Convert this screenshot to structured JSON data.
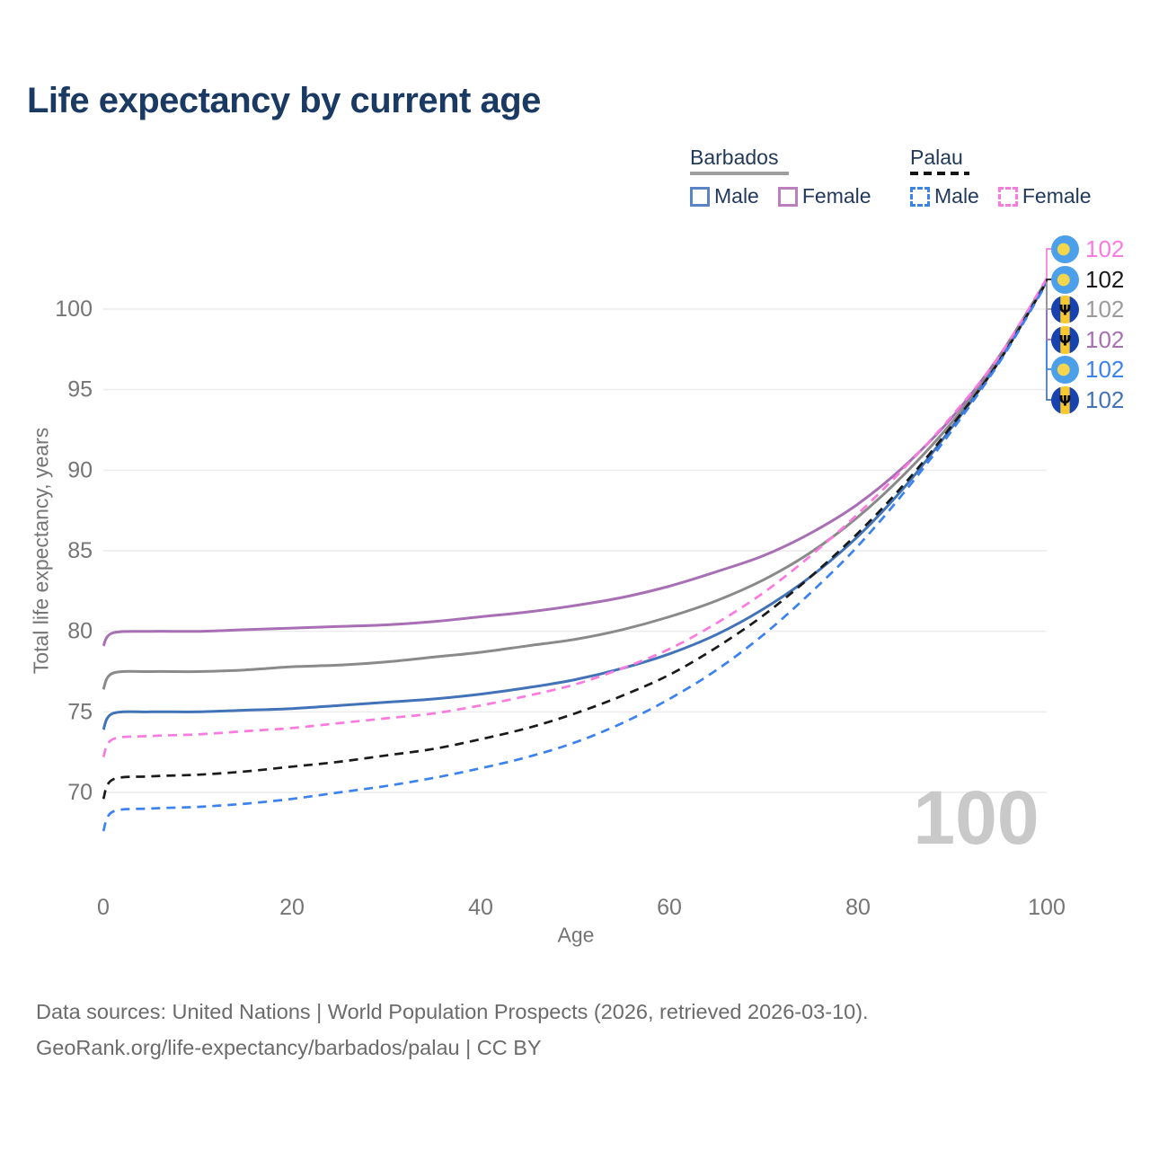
{
  "title": "Life expectancy by current age",
  "legend": {
    "barbados": {
      "title": "Barbados",
      "male": "Male",
      "female": "Female"
    },
    "palau": {
      "title": "Palau",
      "male": "Male",
      "female": "Female"
    }
  },
  "axes": {
    "x_title": "Age",
    "y_title": "Total life expectancy, years",
    "x_ticks": [
      0,
      20,
      40,
      60,
      80,
      100
    ],
    "y_ticks": [
      70,
      75,
      80,
      85,
      90,
      95,
      100
    ]
  },
  "watermark": "100",
  "footer": {
    "line1": "Data sources: United Nations | World Population Prospects (2026, retrieved 2026-03-10).",
    "line2": "GeoRank.org/life-expectancy/barbados/palau | CC BY"
  },
  "colors": {
    "title_text": "#1b3a63",
    "legend_text": "#22395c",
    "axis_text": "#757575",
    "gridline": "#ececec",
    "watermark": "#c9c9c9",
    "footer_text": "#6b6b6b",
    "barbados_male": "#4273b8",
    "barbados_female": "#a86fb5",
    "barbados_total": "#8a8a8a",
    "palau_male": "#3b82ef",
    "palau_female": "#fb7ae0",
    "palau_total": "#1a1a1a"
  },
  "chart_data": {
    "type": "line",
    "title": "Life expectancy by current age",
    "xlabel": "Age",
    "ylabel": "Total life expectancy, years",
    "xlim": [
      0,
      100
    ],
    "ylim": [
      67,
      102
    ],
    "grid": "horizontal",
    "ages": [
      0,
      1,
      5,
      10,
      15,
      20,
      25,
      30,
      35,
      40,
      45,
      50,
      55,
      60,
      65,
      70,
      75,
      80,
      85,
      90,
      95,
      100
    ],
    "series": [
      {
        "id": "barbados-female",
        "country": "Barbados",
        "sex": "Female",
        "style": "solid",
        "color": "#a86fb5",
        "values": [
          79.1,
          79.9,
          80.0,
          80.0,
          80.1,
          80.2,
          80.3,
          80.4,
          80.6,
          80.9,
          81.2,
          81.6,
          82.1,
          82.8,
          83.7,
          84.7,
          86.1,
          87.9,
          90.3,
          93.3,
          97.1,
          101.8
        ]
      },
      {
        "id": "barbados-total",
        "country": "Barbados",
        "sex": "All",
        "style": "solid",
        "color": "#8a8a8a",
        "values": [
          76.4,
          77.4,
          77.5,
          77.5,
          77.6,
          77.8,
          77.9,
          78.1,
          78.4,
          78.7,
          79.1,
          79.5,
          80.1,
          80.9,
          81.9,
          83.2,
          84.9,
          87.1,
          89.8,
          93.0,
          96.9,
          101.8
        ]
      },
      {
        "id": "barbados-male",
        "country": "Barbados",
        "sex": "Male",
        "style": "solid",
        "color": "#4273b8",
        "values": [
          73.9,
          74.9,
          75.0,
          75.0,
          75.1,
          75.2,
          75.4,
          75.6,
          75.8,
          76.1,
          76.5,
          77.0,
          77.7,
          78.6,
          79.8,
          81.4,
          83.4,
          85.9,
          89.0,
          92.7,
          96.8,
          101.7
        ]
      },
      {
        "id": "palau-female",
        "country": "Palau",
        "sex": "Female",
        "style": "dashed",
        "color": "#fb7ae0",
        "values": [
          72.2,
          73.3,
          73.5,
          73.6,
          73.8,
          74.0,
          74.3,
          74.6,
          74.9,
          75.4,
          76.0,
          76.7,
          77.7,
          78.9,
          80.5,
          82.4,
          84.7,
          87.3,
          90.2,
          93.4,
          97.1,
          101.9
        ]
      },
      {
        "id": "palau-total",
        "country": "Palau",
        "sex": "All",
        "style": "dashed",
        "color": "#1a1a1a",
        "values": [
          69.6,
          70.8,
          71.0,
          71.1,
          71.3,
          71.6,
          71.9,
          72.3,
          72.7,
          73.3,
          74.0,
          74.9,
          76.0,
          77.3,
          79.0,
          81.0,
          83.4,
          86.1,
          89.2,
          92.8,
          96.8,
          101.7
        ]
      },
      {
        "id": "palau-male",
        "country": "Palau",
        "sex": "Male",
        "style": "dashed",
        "color": "#3b82ef",
        "values": [
          67.6,
          68.8,
          69.0,
          69.1,
          69.3,
          69.6,
          70.0,
          70.4,
          70.9,
          71.5,
          72.2,
          73.1,
          74.3,
          75.8,
          77.6,
          79.8,
          82.4,
          85.3,
          88.7,
          92.5,
          96.7,
          101.6
        ]
      }
    ],
    "end_labels": [
      {
        "series": "palau-female",
        "value": "102",
        "color": "#fb7ae0",
        "flag": "palau"
      },
      {
        "series": "palau-total",
        "value": "102",
        "color": "#1a1a1a",
        "flag": "palau"
      },
      {
        "series": "barbados-total",
        "value": "102",
        "color": "#9b9b9b",
        "flag": "barbados"
      },
      {
        "series": "barbados-female",
        "value": "102",
        "color": "#a86fb5",
        "flag": "barbados"
      },
      {
        "series": "palau-male",
        "value": "102",
        "color": "#3b82ef",
        "flag": "palau"
      },
      {
        "series": "barbados-male",
        "value": "102",
        "color": "#4273b8",
        "flag": "barbados"
      }
    ]
  }
}
